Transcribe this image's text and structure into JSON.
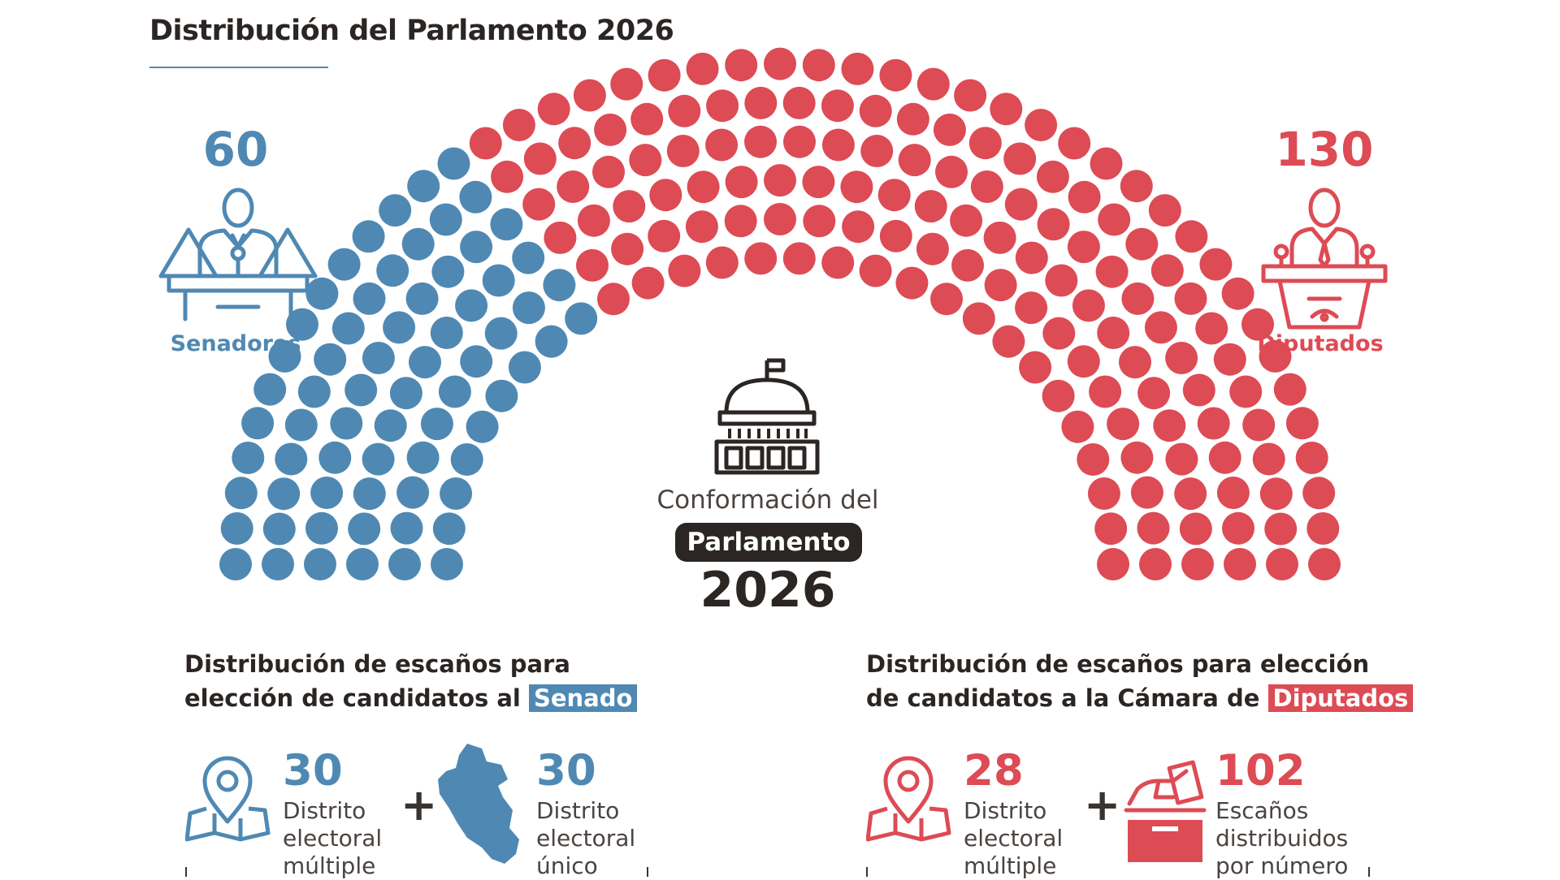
{
  "title": "Distribución del Parlamento 2026",
  "senate": {
    "count": "60",
    "label": "Senadores",
    "color": "#4f89b3"
  },
  "deputies": {
    "count": "130",
    "label": "Diputados",
    "color": "#dd4b55"
  },
  "center": {
    "caption": "Conformación del",
    "pill": "Parlamento",
    "year": "2026"
  },
  "senate_section": {
    "line1": "Distribución de escaños para",
    "line2_prefix": "elección de candidatos al",
    "highlight": "Senado",
    "items": [
      {
        "number": "30",
        "label_lines": [
          "Distrito",
          "electoral",
          "múltiple"
        ],
        "icon": "map-pin-icon"
      },
      {
        "number": "30",
        "label_lines": [
          "Distrito",
          "electoral",
          "único"
        ],
        "icon": "peru-map-icon"
      }
    ]
  },
  "deputies_section": {
    "line1": "Distribución de escaños para elección",
    "line2_prefix": "de candidatos a la Cámara de",
    "highlight": "Diputados",
    "items": [
      {
        "number": "28",
        "label_lines": [
          "Distrito",
          "electoral",
          "múltiple"
        ],
        "icon": "map-pin-icon"
      },
      {
        "number": "102",
        "label_lines": [
          "Escaños",
          "distribuidos",
          "por número"
        ],
        "icon": "ballot-box-icon"
      }
    ]
  },
  "plus_sign": "+"
}
